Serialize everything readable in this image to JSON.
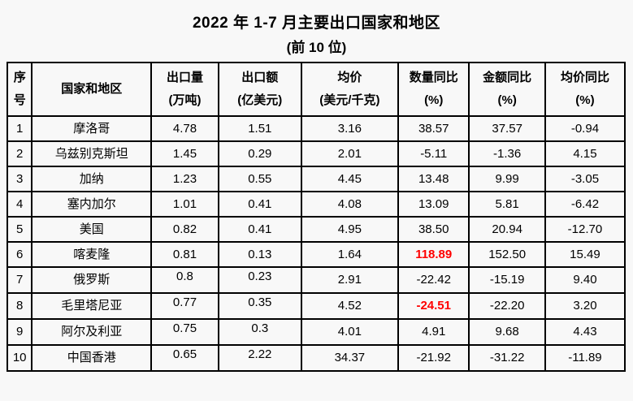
{
  "page": {
    "title": "2022 年 1-7 月主要出口国家和地区",
    "subtitle": "(前 10 位)"
  },
  "colors": {
    "background": "#f8f8f8",
    "text": "#000000",
    "border": "#000000",
    "highlight_red": "#ff0000"
  },
  "table": {
    "headers": {
      "rank": "序\n号",
      "country": "国家和地区",
      "volume": "出口量\n(万吨)",
      "value": "出口额\n(亿美元)",
      "avg_price": "均价\n(美元/千克)",
      "qty_yoy": "数量同比\n(%)",
      "value_yoy": "金额同比\n(%)",
      "price_yoy": "均价同比\n(%)"
    },
    "rows": [
      {
        "rank": "1",
        "country": "摩洛哥",
        "volume": "4.78",
        "value": "1.51",
        "avg_price": "3.16",
        "qty_yoy": "38.57",
        "value_yoy": "37.57",
        "price_yoy": "-0.94",
        "qty_highlight": false
      },
      {
        "rank": "2",
        "country": "乌兹别克斯坦",
        "volume": "1.45",
        "value": "0.29",
        "avg_price": "2.01",
        "qty_yoy": "-5.11",
        "value_yoy": "-1.36",
        "price_yoy": "4.15",
        "qty_highlight": false
      },
      {
        "rank": "3",
        "country": "加纳",
        "volume": "1.23",
        "value": "0.55",
        "avg_price": "4.45",
        "qty_yoy": "13.48",
        "value_yoy": "9.99",
        "price_yoy": "-3.05",
        "qty_highlight": false
      },
      {
        "rank": "4",
        "country": "塞内加尔",
        "volume": "1.01",
        "value": "0.41",
        "avg_price": "4.08",
        "qty_yoy": "13.09",
        "value_yoy": "5.81",
        "price_yoy": "-6.42",
        "qty_highlight": false
      },
      {
        "rank": "5",
        "country": "美国",
        "volume": "0.82",
        "value": "0.41",
        "avg_price": "4.95",
        "qty_yoy": "38.50",
        "value_yoy": "20.94",
        "price_yoy": "-12.70",
        "qty_highlight": false
      },
      {
        "rank": "6",
        "country": "喀麦隆",
        "volume": "0.81",
        "value": "0.13",
        "avg_price": "1.64",
        "qty_yoy": "118.89",
        "value_yoy": "152.50",
        "price_yoy": "15.49",
        "qty_highlight": true
      },
      {
        "rank": "7",
        "country": "俄罗斯",
        "volume": "0.8",
        "value": "0.23",
        "avg_price": "2.91",
        "qty_yoy": "-22.42",
        "value_yoy": "-15.19",
        "price_yoy": "9.40",
        "qty_highlight": false
      },
      {
        "rank": "8",
        "country": "毛里塔尼亚",
        "volume": "0.77",
        "value": "0.35",
        "avg_price": "4.52",
        "qty_yoy": "-24.51",
        "value_yoy": "-22.20",
        "price_yoy": "3.20",
        "qty_highlight": true
      },
      {
        "rank": "9",
        "country": "阿尔及利亚",
        "volume": "0.75",
        "value": "0.3",
        "avg_price": "4.01",
        "qty_yoy": "4.91",
        "value_yoy": "9.68",
        "price_yoy": "4.43",
        "qty_highlight": false
      },
      {
        "rank": "10",
        "country": "中国香港",
        "volume": "0.65",
        "value": "2.22",
        "avg_price": "34.37",
        "qty_yoy": "-21.92",
        "value_yoy": "-31.22",
        "price_yoy": "-11.89",
        "qty_highlight": false
      }
    ]
  },
  "chart_data": {
    "type": "table",
    "title": "2022 年 1-7 月主要出口国家和地区 (前 10 位)",
    "columns": [
      "序号",
      "国家和地区",
      "出口量(万吨)",
      "出口额(亿美元)",
      "均价(美元/千克)",
      "数量同比(%)",
      "金额同比(%)",
      "均价同比(%)"
    ],
    "rows": [
      [
        1,
        "摩洛哥",
        4.78,
        1.51,
        3.16,
        38.57,
        37.57,
        -0.94
      ],
      [
        2,
        "乌兹别克斯坦",
        1.45,
        0.29,
        2.01,
        -5.11,
        -1.36,
        4.15
      ],
      [
        3,
        "加纳",
        1.23,
        0.55,
        4.45,
        13.48,
        9.99,
        -3.05
      ],
      [
        4,
        "塞内加尔",
        1.01,
        0.41,
        4.08,
        13.09,
        5.81,
        -6.42
      ],
      [
        5,
        "美国",
        0.82,
        0.41,
        4.95,
        38.5,
        20.94,
        -12.7
      ],
      [
        6,
        "喀麦隆",
        0.81,
        0.13,
        1.64,
        118.89,
        152.5,
        15.49
      ],
      [
        7,
        "俄罗斯",
        0.8,
        0.23,
        2.91,
        -22.42,
        -15.19,
        9.4
      ],
      [
        8,
        "毛里塔尼亚",
        0.77,
        0.35,
        4.52,
        -24.51,
        -22.2,
        3.2
      ],
      [
        9,
        "阿尔及利亚",
        0.75,
        0.3,
        4.01,
        4.91,
        9.68,
        4.43
      ],
      [
        10,
        "中国香港",
        0.65,
        2.22,
        34.37,
        -21.92,
        -31.22,
        -11.89
      ]
    ],
    "notes": "数量同比 values 118.89 (row 6) and -24.51 (row 8) are highlighted in bold red"
  }
}
